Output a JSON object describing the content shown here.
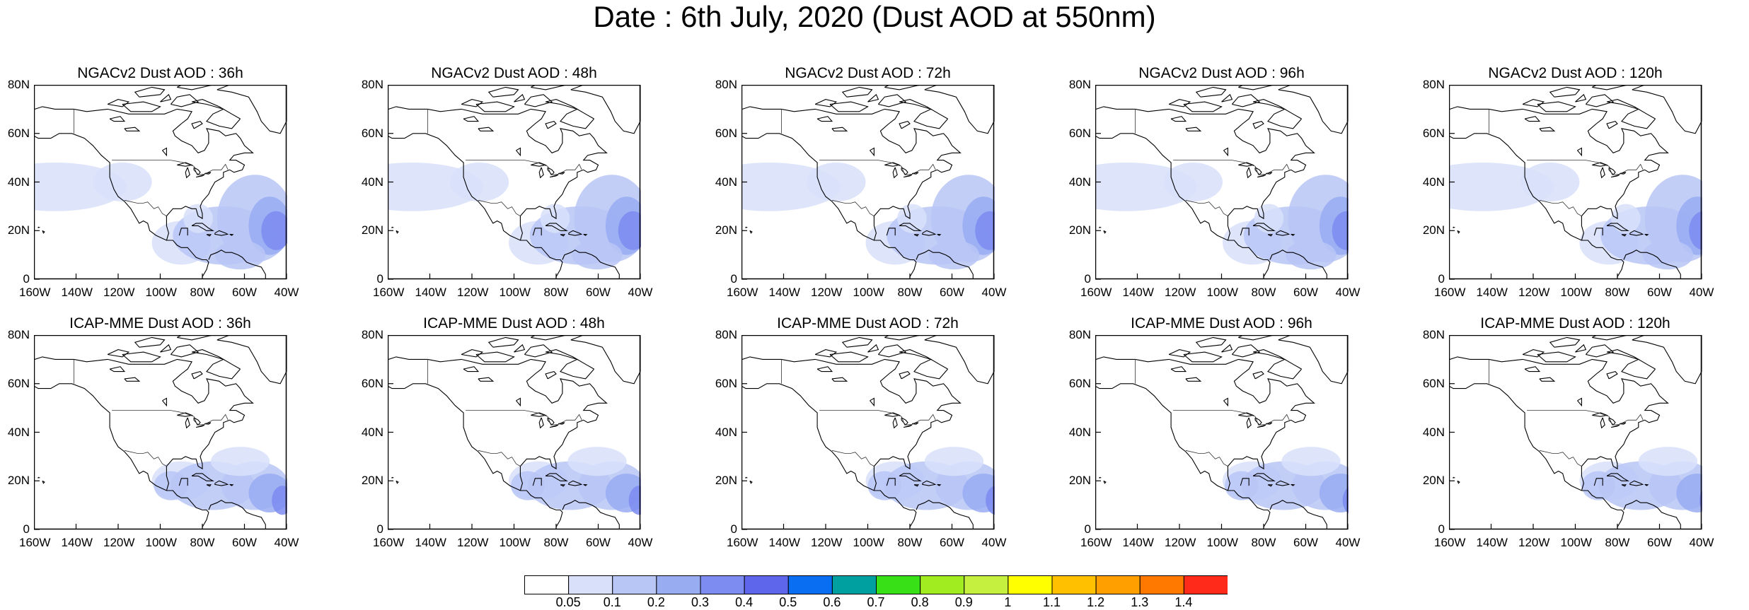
{
  "title": "Date : 6th July, 2020 (Dust AOD at 550nm)",
  "panels": [
    {
      "title": "NGACv2 Dust AOD : 36h"
    },
    {
      "title": "NGACv2 Dust AOD : 48h"
    },
    {
      "title": "NGACv2 Dust AOD : 72h"
    },
    {
      "title": "NGACv2 Dust AOD : 96h"
    },
    {
      "title": "NGACv2 Dust AOD : 120h"
    },
    {
      "title": "ICAP-MME Dust AOD : 36h"
    },
    {
      "title": "ICAP-MME Dust AOD : 48h"
    },
    {
      "title": "ICAP-MME Dust AOD : 72h"
    },
    {
      "title": "ICAP-MME Dust AOD : 96h"
    },
    {
      "title": "ICAP-MME Dust AOD : 120h"
    }
  ],
  "axes": {
    "lat_labels": [
      "0",
      "20N",
      "40N",
      "60N",
      "80N"
    ],
    "lon_labels": [
      "160W",
      "140W",
      "120W",
      "100W",
      "80W",
      "60W",
      "40W"
    ],
    "lat_range": [
      0,
      80
    ],
    "lon_range": [
      -160,
      -40
    ]
  },
  "colorbar": {
    "labels": [
      "0.05",
      "0.1",
      "0.2",
      "0.3",
      "0.4",
      "0.5",
      "0.6",
      "0.7",
      "0.8",
      "0.9",
      "1",
      "1.1",
      "1.2",
      "1.3",
      "1.4"
    ],
    "colors": [
      "#ffffff",
      "#d8e0fa",
      "#b8c6f6",
      "#98acf2",
      "#7c8cf0",
      "#5e66ec",
      "#0a6ef2",
      "#00a0a0",
      "#38e018",
      "#a0ec20",
      "#c6f040",
      "#ffff00",
      "#ffc000",
      "#ffa000",
      "#ff7800",
      "#ff2a1a"
    ]
  }
}
